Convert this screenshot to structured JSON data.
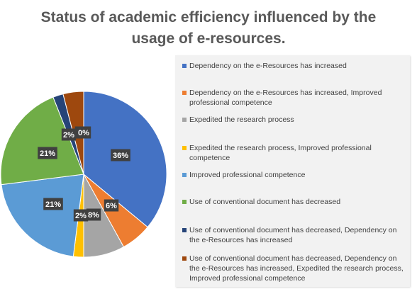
{
  "chart_data": {
    "type": "pie",
    "title_lines": [
      "Status of academic efficiency influenced by the",
      "usage of e-resources."
    ],
    "slices": [
      {
        "label": "Dependency on the e-Resources has increased",
        "value": 36,
        "display": "36%",
        "color": "#4472c4"
      },
      {
        "label": "Dependency on the e-Resources has increased, Improved professional competence",
        "value": 6,
        "display": "6%",
        "color": "#ed7d31"
      },
      {
        "label": "Expedited the research process",
        "value": 8,
        "display": "8%",
        "color": "#a5a5a5"
      },
      {
        "label": "Expedited the research process, Improved professional competence",
        "value": 2,
        "display": "2%",
        "color": "#ffc000"
      },
      {
        "label": "Improved professional competence",
        "value": 21,
        "display": "21%",
        "color": "#5b9bd5"
      },
      {
        "label": "Use of conventional document has decreased",
        "value": 21,
        "display": "21%",
        "color": "#70ad47"
      },
      {
        "label": "Use of conventional document has decreased, Dependency on the e-Resources has increased",
        "value": 2,
        "display": "2%",
        "color": "#264478"
      },
      {
        "label": "Use of conventional document has decreased, Dependency on the e-Resources has increased, Expedited the research process, Improved professional competence",
        "value": 4,
        "display": "4%",
        "color": "#9e480e"
      }
    ],
    "extra_data_labels": [
      "0%"
    ],
    "legend_position": "right"
  }
}
